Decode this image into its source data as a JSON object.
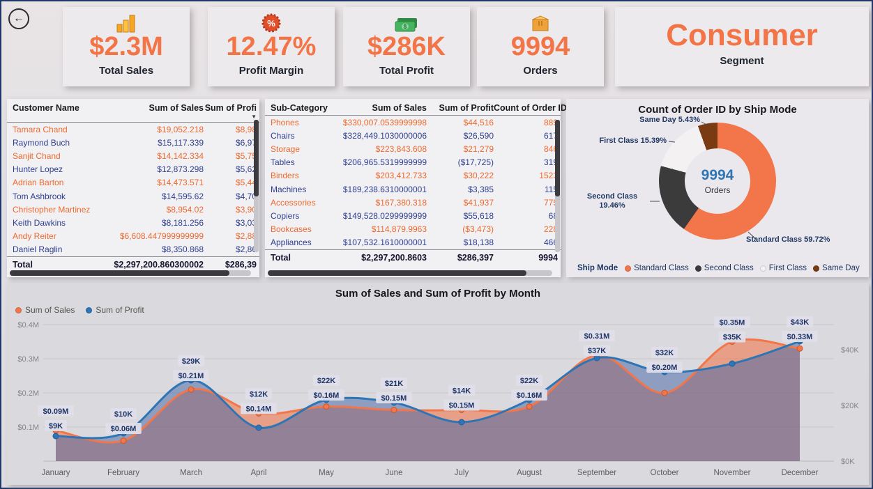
{
  "back_label": "←",
  "header": {
    "cards": [
      {
        "value": "$2.3M",
        "label": "Total Sales",
        "icon": "bar-chart-icon"
      },
      {
        "value": "12.47%",
        "label": "Profit Margin",
        "icon": "percent-badge-icon"
      },
      {
        "value": "$286K",
        "label": "Total Profit",
        "icon": "money-icon"
      },
      {
        "value": "9994",
        "label": "Orders",
        "icon": "box-icon"
      },
      {
        "value": "Consumer",
        "label": "Segment",
        "icon": ""
      }
    ]
  },
  "customer_table": {
    "columns": [
      "Customer Name",
      "Sum of Sales",
      "Sum of Profi"
    ],
    "fields": [
      "name",
      "sales",
      "profit"
    ],
    "rows": [
      {
        "name": "Tamara Chand",
        "sales": "$19,052.218",
        "profit": "$8,98"
      },
      {
        "name": "Raymond Buch",
        "sales": "$15,117.339",
        "profit": "$6,97"
      },
      {
        "name": "Sanjit Chand",
        "sales": "$14,142.334",
        "profit": "$5,75"
      },
      {
        "name": "Hunter Lopez",
        "sales": "$12,873.298",
        "profit": "$5,62"
      },
      {
        "name": "Adrian Barton",
        "sales": "$14,473.571",
        "profit": "$5,44"
      },
      {
        "name": "Tom Ashbrook",
        "sales": "$14,595.62",
        "profit": "$4,70"
      },
      {
        "name": "Christopher Martinez",
        "sales": "$8,954.02",
        "profit": "$3,90"
      },
      {
        "name": "Keith Dawkins",
        "sales": "$8,181.256",
        "profit": "$3,03"
      },
      {
        "name": "Andy Reiter",
        "sales": "$6,608.447999999999",
        "profit": "$2,88"
      },
      {
        "name": "Daniel Raglin",
        "sales": "$8,350.868",
        "profit": "$2,86"
      }
    ],
    "total": {
      "name": "Total",
      "sales": "$2,297,200.860300002",
      "profit": "$286,39"
    }
  },
  "subcategory_table": {
    "columns": [
      "Sub-Category",
      "Sum of Sales",
      "Sum of Profit",
      "Count of Order ID"
    ],
    "fields": [
      "name",
      "sales",
      "profit",
      "count"
    ],
    "rows": [
      {
        "name": "Phones",
        "sales": "$330,007.0539999998",
        "profit": "$44,516",
        "count": "889"
      },
      {
        "name": "Chairs",
        "sales": "$328,449.1030000006",
        "profit": "$26,590",
        "count": "617"
      },
      {
        "name": "Storage",
        "sales": "$223,843.608",
        "profit": "$21,279",
        "count": "846"
      },
      {
        "name": "Tables",
        "sales": "$206,965.5319999999",
        "profit": "($17,725)",
        "count": "319"
      },
      {
        "name": "Binders",
        "sales": "$203,412.733",
        "profit": "$30,222",
        "count": "1523"
      },
      {
        "name": "Machines",
        "sales": "$189,238.6310000001",
        "profit": "$3,385",
        "count": "115"
      },
      {
        "name": "Accessories",
        "sales": "$167,380.318",
        "profit": "$41,937",
        "count": "775"
      },
      {
        "name": "Copiers",
        "sales": "$149,528.0299999999",
        "profit": "$55,618",
        "count": "68"
      },
      {
        "name": "Bookcases",
        "sales": "$114,879.9963",
        "profit": "($3,473)",
        "count": "228"
      },
      {
        "name": "Appliances",
        "sales": "$107,532.1610000001",
        "profit": "$18,138",
        "count": "466"
      }
    ],
    "total": {
      "name": "Total",
      "sales": "$2,297,200.8603",
      "profit": "$286,397",
      "count": "9994"
    }
  },
  "ship_mode": {
    "title": "Count of Order ID by Ship Mode",
    "center_value": "9994",
    "center_label": "Orders",
    "legend_title": "Ship Mode",
    "slices": [
      {
        "label": "Standard Class",
        "pct": 59.72,
        "color": "#F2764A"
      },
      {
        "label": "Second Class",
        "pct": 19.46,
        "color": "#3B3B3B"
      },
      {
        "label": "First Class",
        "pct": 15.39,
        "color": "#F3F1F2"
      },
      {
        "label": "Same Day",
        "pct": 5.43,
        "color": "#7A3A12"
      }
    ],
    "callouts": [
      "Same Day 5.43%",
      "First Class 15.39%",
      "Second Class 19.46%",
      "Standard Class 59.72%"
    ]
  },
  "chart_data": {
    "type": "area",
    "title": "Sum of Sales and Sum of Profit by Month",
    "categories": [
      "January",
      "February",
      "March",
      "April",
      "May",
      "June",
      "July",
      "August",
      "September",
      "October",
      "November",
      "December"
    ],
    "series": [
      {
        "name": "Sum of Sales",
        "axis": "left",
        "unit": "M",
        "color": "#F2764A",
        "values": [
          0.09,
          0.06,
          0.21,
          0.14,
          0.16,
          0.15,
          0.15,
          0.16,
          0.31,
          0.2,
          0.35,
          0.33
        ],
        "labels": [
          "$0.09M",
          "$0.06M",
          "$0.21M",
          "$0.14M",
          "$0.16M",
          "$0.15M",
          "$0.15M",
          "$0.16M",
          "$0.31M",
          "$0.20M",
          "$0.35M",
          "$0.33M"
        ]
      },
      {
        "name": "Sum of Profit",
        "axis": "right",
        "unit": "K",
        "color": "#2E75B6",
        "values": [
          9,
          10,
          29,
          12,
          22,
          21,
          14,
          22,
          37,
          32,
          35,
          43
        ],
        "labels": [
          "$9K",
          "$10K",
          "$29K",
          "$12K",
          "$22K",
          "$21K",
          "$14K",
          "$22K",
          "$37K",
          "$32K",
          "$35K",
          "$43K"
        ]
      }
    ],
    "label_top_series": [
      "sales",
      "profit",
      "profit",
      "profit",
      "profit",
      "profit",
      "profit",
      "profit",
      "sales",
      "profit",
      "sales",
      "profit"
    ],
    "left_axis": {
      "ticks": [
        "$0.1M",
        "$0.2M",
        "$0.3M",
        "$0.4M"
      ],
      "range": [
        0,
        0.42
      ]
    },
    "right_axis": {
      "ticks": [
        "$0K",
        "$20K",
        "$40K"
      ],
      "range": [
        0,
        51.5
      ]
    },
    "legend_position": "top-left",
    "grid": true
  }
}
